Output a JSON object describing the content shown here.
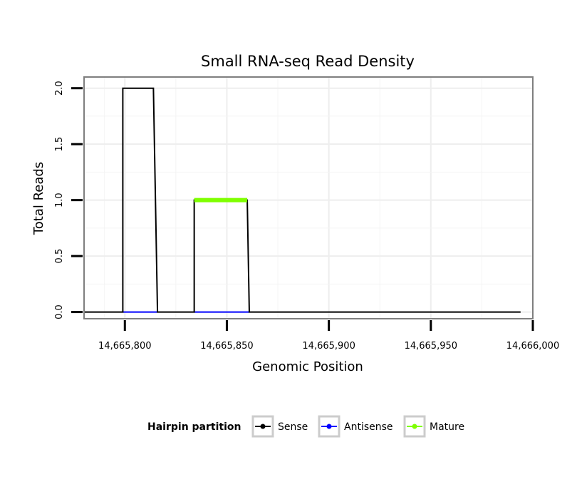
{
  "chart_data": {
    "type": "line",
    "title": "Small RNA-seq Read Density",
    "xlabel": "Genomic Position",
    "ylabel": "Total Reads",
    "xlim": [
      14665780,
      14666000
    ],
    "ylim": [
      -0.06,
      2.1
    ],
    "x_ticks": [
      14665800,
      14665850,
      14665900,
      14665950,
      14666000
    ],
    "x_tick_labels": [
      "14,665,800",
      "14,665,850",
      "14,665,900",
      "14,665,950",
      "14,666,000"
    ],
    "y_ticks": [
      0,
      0.5,
      1,
      1.5,
      2
    ],
    "y_tick_labels": [
      "0.0",
      "0.5",
      "1.0",
      "1.5",
      "2.0"
    ],
    "grid": true,
    "legend": {
      "title": "Hairpin partition",
      "position": "bottom"
    },
    "series": [
      {
        "name": "Sense",
        "color": "#000000",
        "x": [
          14665780,
          14665799,
          14665799,
          14665814,
          14665816,
          14665834,
          14665834,
          14665860,
          14665861,
          14665994
        ],
        "y": [
          0,
          0,
          2,
          2,
          0,
          0,
          1,
          1,
          0,
          0
        ]
      },
      {
        "name": "Antisense",
        "color": "#0000ff",
        "x": [
          14665799,
          14665816,
          14665834,
          14665861
        ],
        "y": [
          0,
          0,
          0,
          0
        ],
        "segments": [
          [
            0,
            1
          ],
          [
            2,
            3
          ]
        ]
      },
      {
        "name": "Mature",
        "color": "#7fff00",
        "x": [
          14665834,
          14665860
        ],
        "y": [
          1,
          1
        ]
      }
    ]
  }
}
